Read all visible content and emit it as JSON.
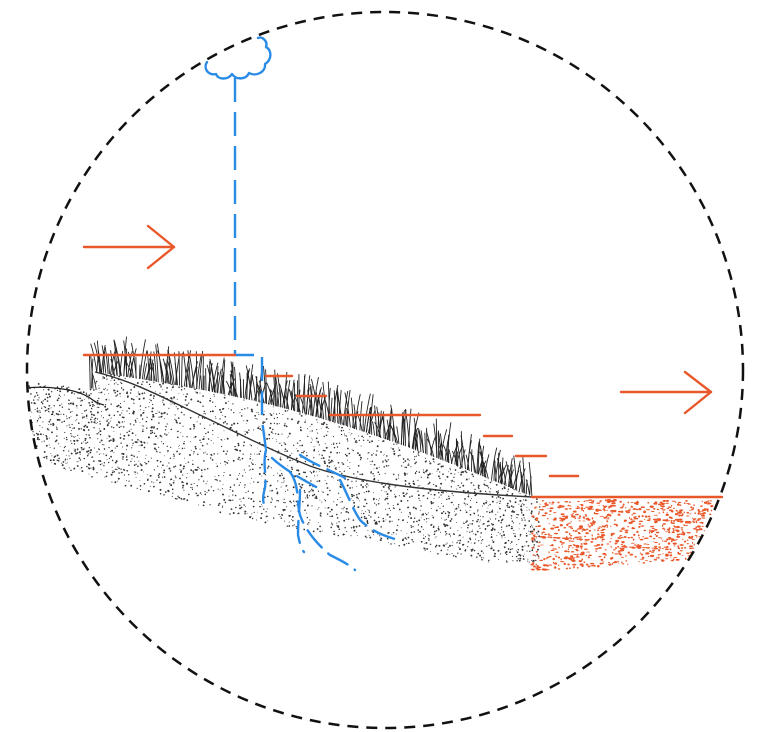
{
  "diagram": {
    "type": "cross-section illustration",
    "labels": [],
    "elements": [
      "cloud-icon",
      "rain-stream",
      "wind-arrow",
      "flow-arrow",
      "upper-water-level",
      "stepped-water-levels",
      "lower-water-level",
      "soil-slope",
      "grass-vegetation",
      "groundwater-infiltration",
      "eroded-sediment-deposit"
    ],
    "colors": {
      "boundary": "#111111",
      "water": "#2a8be6",
      "flow": "#e8582a",
      "soil": "#333333",
      "grass": "#222222",
      "sediment": "#e8582a"
    }
  }
}
